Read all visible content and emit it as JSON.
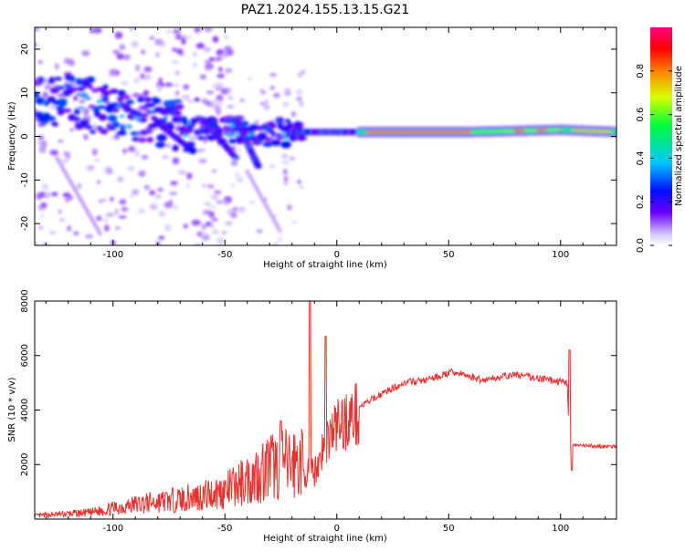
{
  "figure": {
    "title": "PAZ1.2024.155.13.15.G21"
  },
  "chart_data": [
    {
      "type": "heatmap",
      "xlabel": "Height of straight line (km)",
      "ylabel": "Frequency (Hz)",
      "xlim": [
        -135,
        125
      ],
      "ylim": [
        -25,
        25
      ],
      "x_ticks": [
        -100,
        -50,
        0,
        50,
        100
      ],
      "y_ticks": [
        -20,
        -10,
        0,
        10,
        20
      ],
      "colorbar": {
        "label": "Normalized spectral amplitude",
        "ticks": [
          "0.0",
          "0.2",
          "0.4",
          "0.6",
          "0.8"
        ],
        "range": [
          0,
          1
        ],
        "colormap": "rainbow-white-to-magenta"
      },
      "ridge": [
        {
          "x": -130,
          "f": 9
        },
        {
          "x": -115,
          "f": 8
        },
        {
          "x": -100,
          "f": 5
        },
        {
          "x": -85,
          "f": 4
        },
        {
          "x": -70,
          "f": 3
        },
        {
          "x": -55,
          "f": 2
        },
        {
          "x": -40,
          "f": 1
        },
        {
          "x": -20,
          "f": 1
        },
        {
          "x": 0,
          "f": 1
        },
        {
          "x": 20,
          "f": 1
        },
        {
          "x": 60,
          "f": 1
        },
        {
          "x": 100,
          "f": 1.5
        },
        {
          "x": 125,
          "f": 1
        }
      ],
      "branches": [
        {
          "from": [
            -80,
            3
          ],
          "to": [
            -65,
            -3
          ]
        },
        {
          "from": [
            -60,
            4
          ],
          "to": [
            -45,
            -5
          ]
        },
        {
          "from": [
            -45,
            4
          ],
          "to": [
            -35,
            -7
          ]
        }
      ],
      "grid": false
    },
    {
      "type": "line",
      "xlabel": "Height of straight line (km)",
      "ylabel": "SNR (10 * v/v)",
      "xlim": [
        -135,
        125
      ],
      "ylim": [
        0,
        8000
      ],
      "x_ticks": [
        -100,
        -50,
        0,
        50,
        100
      ],
      "y_ticks": [
        2000,
        4000,
        6000,
        8000
      ],
      "color": "#e8322f",
      "series": [
        {
          "envelope": [
            {
              "x": -135,
              "y": 100
            },
            {
              "x": -110,
              "y": 200
            },
            {
              "x": -90,
              "y": 450
            },
            {
              "x": -70,
              "y": 600
            },
            {
              "x": -50,
              "y": 850
            },
            {
              "x": -40,
              "y": 1200
            },
            {
              "x": -30,
              "y": 1600
            },
            {
              "x": -20,
              "y": 1700
            },
            {
              "x": -10,
              "y": 1800
            },
            {
              "x": -5,
              "y": 3000
            },
            {
              "x": 0,
              "y": 3600
            },
            {
              "x": 10,
              "y": 4100
            },
            {
              "x": 20,
              "y": 4600
            },
            {
              "x": 30,
              "y": 5000
            },
            {
              "x": 40,
              "y": 5100
            },
            {
              "x": 52,
              "y": 5400
            },
            {
              "x": 65,
              "y": 5100
            },
            {
              "x": 80,
              "y": 5300
            },
            {
              "x": 95,
              "y": 5100
            },
            {
              "x": 103,
              "y": 5000
            },
            {
              "x": 104,
              "y": 2700
            },
            {
              "x": 125,
              "y": 2650
            }
          ],
          "spikes": [
            {
              "x": -25,
              "y": 3600
            },
            {
              "x": -12,
              "y": 8000
            },
            {
              "x": -5,
              "y": 6700
            },
            {
              "x": 104,
              "y": 6200
            },
            {
              "x": 105,
              "y": 1800
            }
          ]
        }
      ]
    }
  ]
}
